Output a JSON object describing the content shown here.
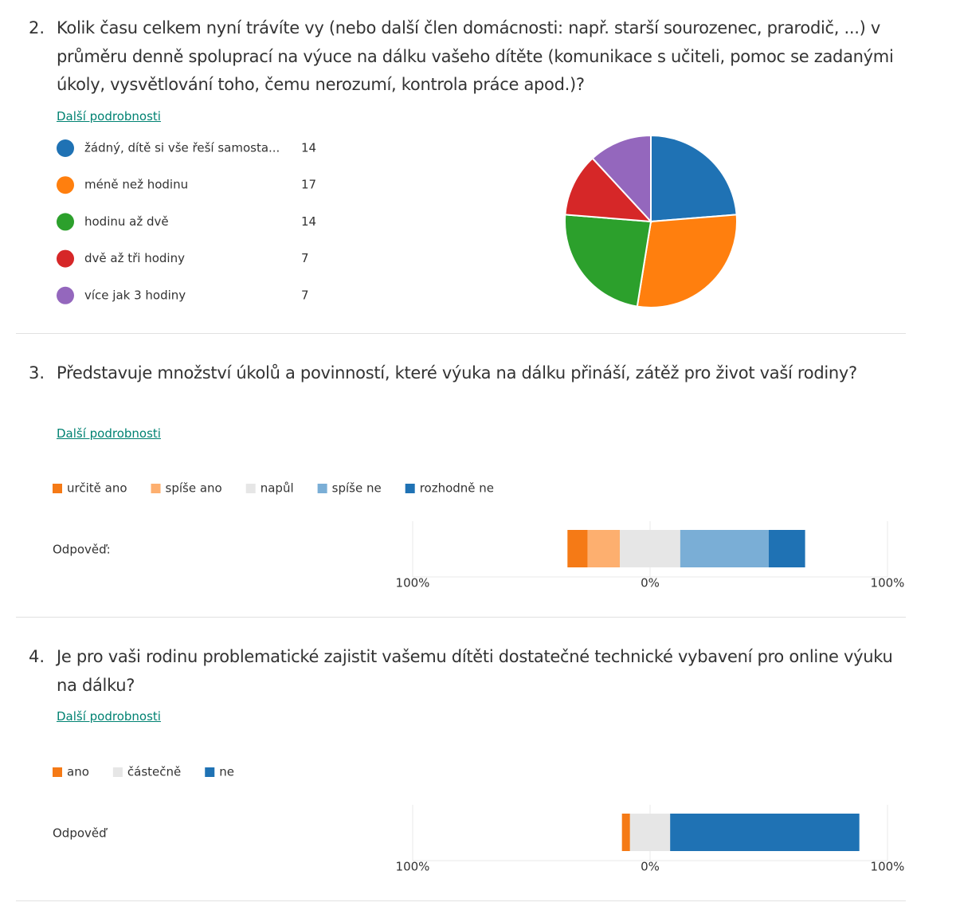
{
  "chart_data": [
    {
      "type": "pie",
      "number": "2.",
      "title": "Kolik času celkem nyní trávíte vy (nebo další člen domácnosti: např. starší sourozenec, prarodič, ...) v průměru denně spoluprací na výuce na dálku vašeho dítěte (komunikace s učiteli, pomoc se zadanými úkoly, vysvětlování toho, čemu nerozumí, kontrola práce apod.)?",
      "details": "Další podrobnosti",
      "categories": [
        "žádný, dítě si vše řeší samosta...",
        "méně než hodinu",
        "hodinu až dvě",
        "dvě až tři hodiny",
        "více jak 3 hodiny"
      ],
      "values": [
        14,
        17,
        14,
        7,
        7
      ],
      "colors": [
        "#1f72b4",
        "#ff7f0e",
        "#2ca02c",
        "#d62728",
        "#9467bd"
      ]
    },
    {
      "type": "diverging_bar",
      "number": "3.",
      "title": "Představuje množství úkolů a povinností, které výuka na dálku přináší, zátěž pro život vaší rodiny?",
      "details": "Další podrobnosti",
      "categories": [
        "Odpověď:"
      ],
      "series": [
        {
          "name": "určitě ano",
          "color": "#f57a16",
          "values": [
            8.5
          ]
        },
        {
          "name": "spíše ano",
          "color": "#fdaf6f",
          "values": [
            13.6
          ]
        },
        {
          "name": "napůl",
          "color": "#e6e6e6",
          "values": [
            25.4
          ]
        },
        {
          "name": "spíše ne",
          "color": "#7aaed6",
          "values": [
            37.3
          ]
        },
        {
          "name": "rozhodně ne",
          "color": "#1f72b4",
          "values": [
            15.3
          ]
        }
      ],
      "xlim": [
        -100,
        100
      ],
      "xticks": [
        {
          "value": -100,
          "label": "100%"
        },
        {
          "value": 0,
          "label": "0%"
        },
        {
          "value": 100,
          "label": "100%"
        }
      ]
    },
    {
      "type": "diverging_bar",
      "number": "4.",
      "title": "Je pro vaši rodinu problematické zajistit vašemu dítěti dostatečné technické vybavení pro online výuku na dálku?",
      "details": "Další podrobnosti",
      "categories": [
        "Odpověď"
      ],
      "series": [
        {
          "name": "ano",
          "color": "#f57a16",
          "values": [
            3.4
          ]
        },
        {
          "name": "částečně",
          "color": "#e6e6e6",
          "values": [
            16.9
          ]
        },
        {
          "name": "ne",
          "color": "#1f72b4",
          "values": [
            79.7
          ]
        }
      ],
      "xlim": [
        -100,
        100
      ],
      "xticks": [
        {
          "value": -100,
          "label": "100%"
        },
        {
          "value": 0,
          "label": "0%"
        },
        {
          "value": 100,
          "label": "100%"
        }
      ]
    }
  ]
}
